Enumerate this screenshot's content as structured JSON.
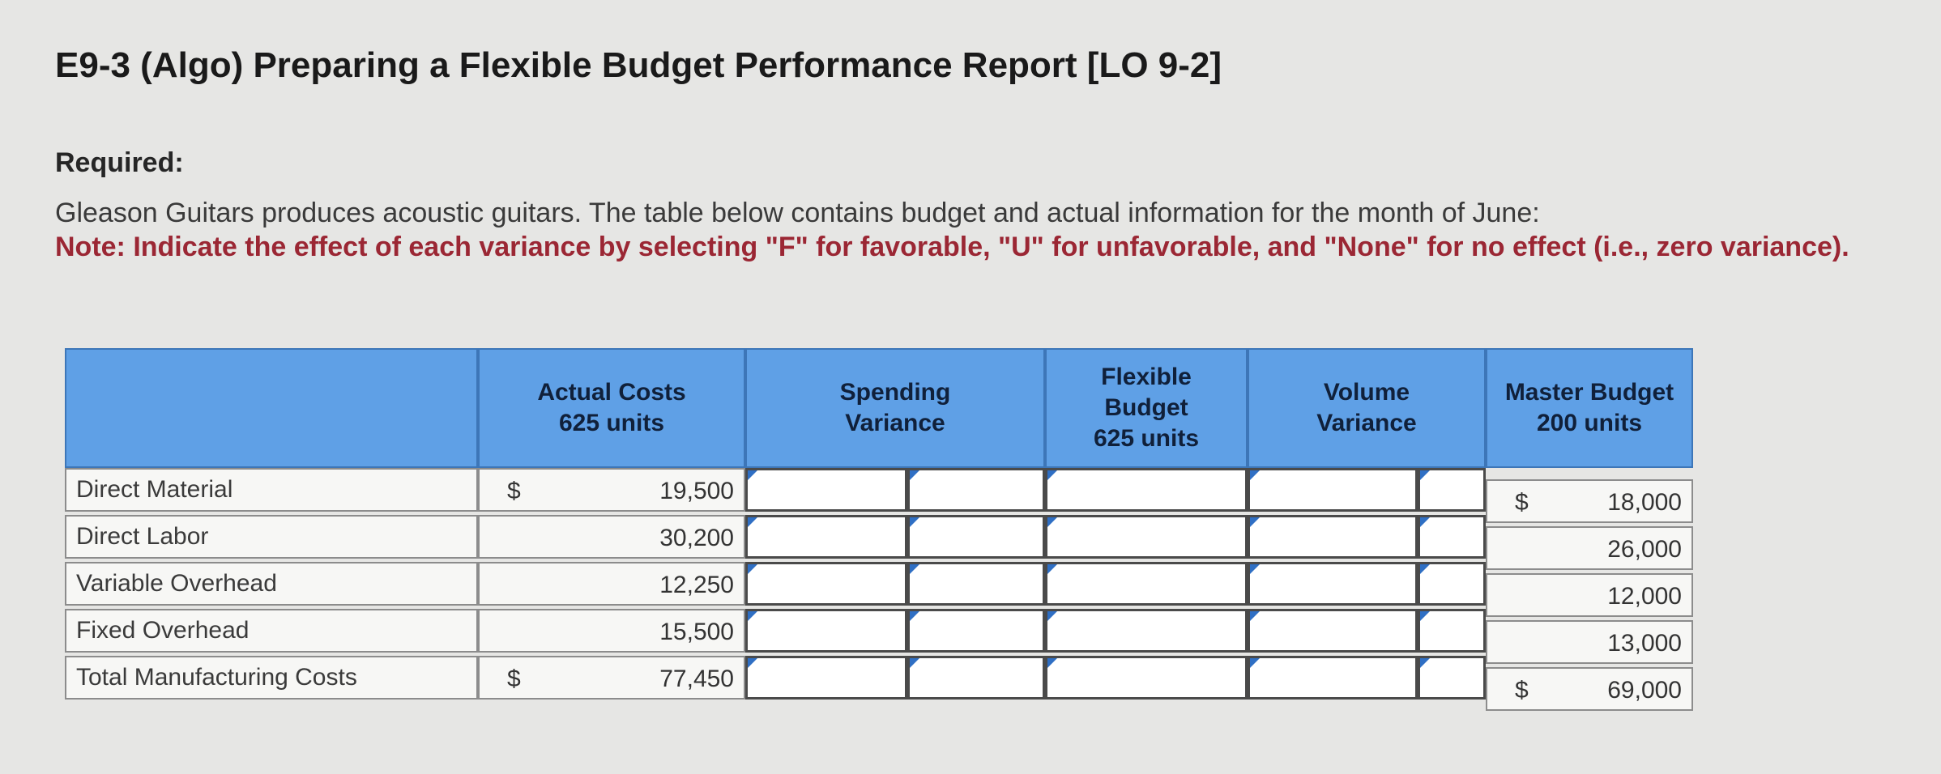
{
  "title": "E9-3 (Algo) Preparing a Flexible Budget Performance Report [LO 9-2]",
  "required_label": "Required:",
  "description": "Gleason Guitars produces acoustic guitars. The table below contains budget and actual information for the month of June:",
  "note": "Note: Indicate the effect of each variance by selecting \"F\" for favorable, \"U\" for unfavorable, and \"None\" for no effect (i.e., zero variance).",
  "table": {
    "headers": {
      "actual": "Actual Costs\n625 units",
      "spending": "Spending\nVariance",
      "flexible": "Flexible\nBudget\n625 units",
      "volume": "Volume\nVariance",
      "master": "Master Budget\n200 units"
    },
    "currency_symbol": "$",
    "rows": [
      {
        "label": "Direct Material",
        "actual": "19,500",
        "master": "18,000"
      },
      {
        "label": "Direct Labor",
        "actual": "30,200",
        "master": "26,000"
      },
      {
        "label": "Variable Overhead",
        "actual": "12,250",
        "master": "12,000"
      },
      {
        "label": "Fixed Overhead",
        "actual": "15,500",
        "master": "13,000"
      },
      {
        "label": "Total Manufacturing Costs",
        "actual": "77,450",
        "master": "69,000"
      }
    ]
  },
  "colors": {
    "header_blue": "#5fa0e6",
    "note_red": "#9b2734",
    "flag_blue": "#2f6fc4"
  }
}
